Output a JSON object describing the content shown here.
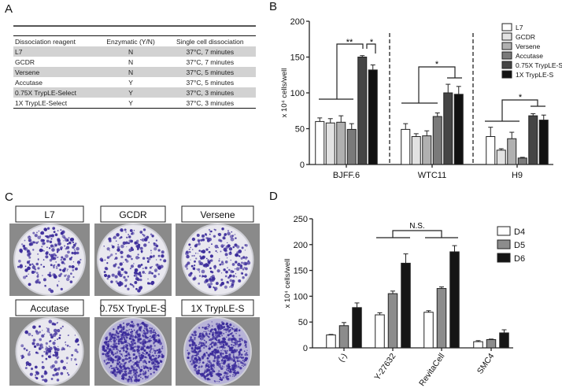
{
  "panels": {
    "a": "A",
    "b": "B",
    "c": "C",
    "d": "D"
  },
  "table": {
    "headers": [
      "Dissociation reagent",
      "Enzymatic (Y/N)",
      "Single cell dissociation"
    ],
    "rows": [
      [
        "L7",
        "N",
        "37°C, 7 minutes"
      ],
      [
        "GCDR",
        "N",
        "37°C, 7 minutes"
      ],
      [
        "Versene",
        "N",
        "37°C, 5 minutes"
      ],
      [
        "Accutase",
        "Y",
        "37°C, 5 minutes"
      ],
      [
        "0.75X TrypLE-Select",
        "Y",
        "37°C, 3 minutes"
      ],
      [
        "1X TrypLE-Select",
        "Y",
        "37°C, 3 minutes"
      ]
    ]
  },
  "plates": {
    "labels": [
      "L7",
      "GCDR",
      "Versene",
      "Accutase",
      "0.75X TrypLE-S",
      "1X TrypLE-S"
    ],
    "stain_color": "#3a2a9a"
  },
  "chart_data": [
    {
      "type": "bar",
      "ylabel": "x 10⁴ cells/well",
      "ylim": [
        0,
        200
      ],
      "yticks": [
        0,
        50,
        100,
        150,
        200
      ],
      "categories": [
        "BJFF.6",
        "WTC11",
        "H9"
      ],
      "series": [
        {
          "name": "L7",
          "color": "#ffffff",
          "values": [
            60,
            49,
            39
          ],
          "errors": [
            5,
            8,
            13
          ]
        },
        {
          "name": "GCDR",
          "color": "#e2e2e2",
          "values": [
            58,
            39,
            20
          ],
          "errors": [
            6,
            4,
            2
          ]
        },
        {
          "name": "Versene",
          "color": "#b0b0b0",
          "values": [
            59,
            40,
            36
          ],
          "errors": [
            9,
            7,
            9
          ]
        },
        {
          "name": "Accutase",
          "color": "#7a7a7a",
          "values": [
            49,
            67,
            9
          ],
          "errors": [
            8,
            5,
            1
          ]
        },
        {
          "name": "0.75X TrypLE-S",
          "color": "#454545",
          "values": [
            150,
            100,
            68
          ],
          "errors": [
            2,
            12,
            3
          ]
        },
        {
          "name": "1X TrypLE-S",
          "color": "#111111",
          "values": [
            132,
            98,
            62
          ],
          "errors": [
            7,
            11,
            7
          ]
        }
      ],
      "annotations": [
        "**",
        "*",
        "*",
        "*"
      ],
      "legend": "top-right"
    },
    {
      "type": "bar",
      "ylabel": "x 10⁴ cells/well",
      "ylim": [
        0,
        250
      ],
      "yticks": [
        0,
        50,
        100,
        150,
        200,
        250
      ],
      "categories": [
        "(-)",
        "Y-27632",
        "RevitaCell",
        "SMC4"
      ],
      "series": [
        {
          "name": "D4",
          "color": "#ffffff",
          "values": [
            25,
            64,
            69,
            12
          ],
          "errors": [
            1,
            4,
            3,
            2
          ]
        },
        {
          "name": "D5",
          "color": "#8c8c8c",
          "values": [
            43,
            105,
            115,
            16
          ],
          "errors": [
            6,
            5,
            3,
            1
          ]
        },
        {
          "name": "D6",
          "color": "#151515",
          "values": [
            78,
            164,
            186,
            29
          ],
          "errors": [
            9,
            18,
            12,
            6
          ]
        }
      ],
      "annotations": [
        "N.S."
      ],
      "legend": "top-right"
    }
  ]
}
